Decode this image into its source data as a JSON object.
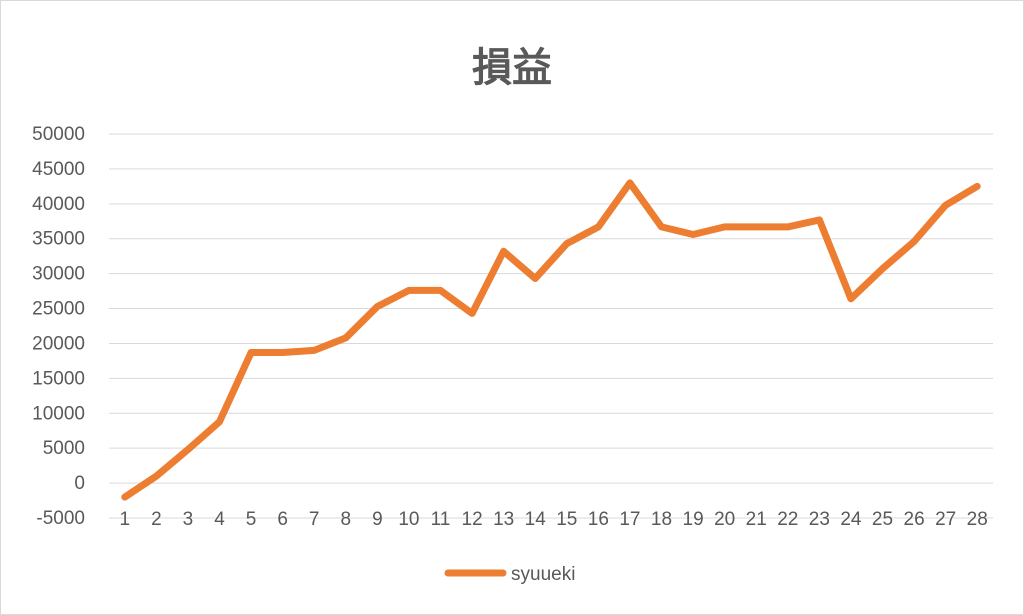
{
  "chart_data": {
    "type": "line",
    "title": "損益",
    "xlabel": "",
    "ylabel": "",
    "categories": [
      "1",
      "2",
      "3",
      "4",
      "5",
      "6",
      "7",
      "8",
      "9",
      "10",
      "11",
      "12",
      "13",
      "14",
      "15",
      "16",
      "17",
      "18",
      "19",
      "20",
      "21",
      "22",
      "23",
      "24",
      "25",
      "26",
      "27",
      "28"
    ],
    "series": [
      {
        "name": "syuueki",
        "color": "#ed7d31",
        "values": [
          -2000,
          1000,
          4800,
          8800,
          18700,
          18700,
          19000,
          20800,
          25300,
          27600,
          27600,
          24300,
          33200,
          29300,
          34300,
          36700,
          43000,
          36700,
          35600,
          36700,
          36700,
          36700,
          37700,
          26400,
          30700,
          34600,
          39800,
          42500
        ]
      }
    ],
    "ylim": [
      -5000,
      50000
    ],
    "yticks": [
      -5000,
      0,
      5000,
      10000,
      15000,
      20000,
      25000,
      30000,
      35000,
      40000,
      45000,
      50000
    ],
    "grid": true,
    "legend_position": "bottom"
  }
}
